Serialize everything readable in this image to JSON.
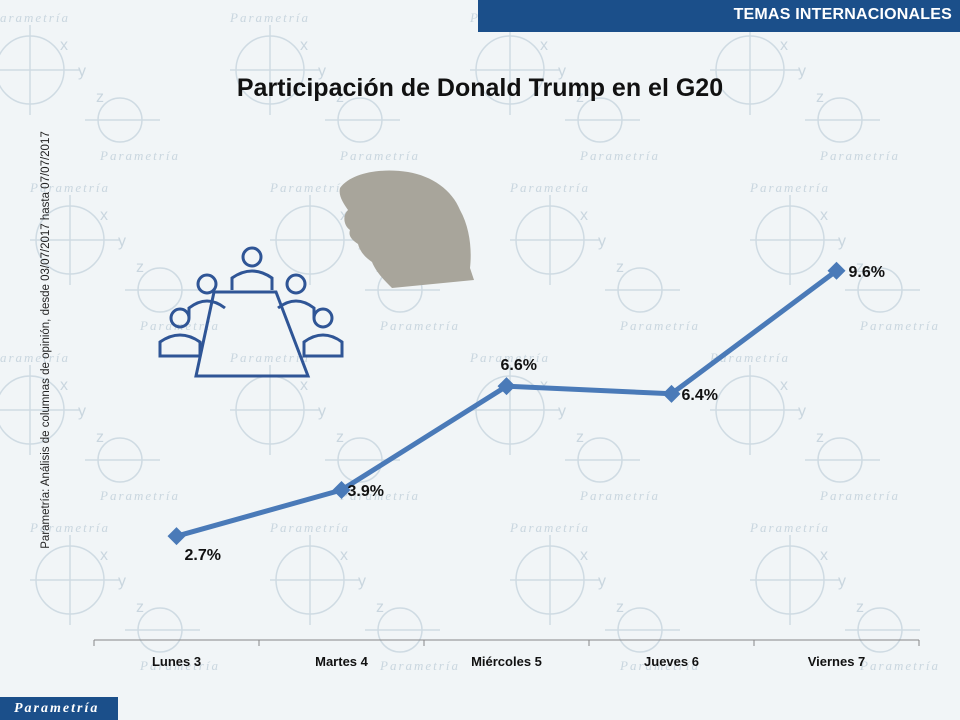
{
  "header": {
    "section": "TEMAS INTERNACIONALES"
  },
  "source_note": "Parametría: Análisis de columnas de opinión, desde 03/07/2017 hasta 07/07/2017",
  "footer": {
    "brand": "Parametría"
  },
  "background": {
    "watermark_word": "Parametría",
    "axis_letters": [
      "x",
      "y",
      "z"
    ]
  },
  "illustrations": [
    "trump-silhouette",
    "meeting-table-icon"
  ],
  "colors": {
    "line": "#4a7ab8",
    "banner": "#1b4f8a",
    "silhouette": "#a8a59b",
    "icon": "#2f5596"
  },
  "chart_data": {
    "type": "line",
    "title": "Participación de Donald Trump en el G20",
    "categories": [
      "Lunes 3",
      "Martes 4",
      "Miércoles 5",
      "Jueves 6",
      "Viernes 7"
    ],
    "values": [
      2.7,
      3.9,
      6.6,
      6.4,
      9.6
    ],
    "data_labels": [
      "2.7%",
      "3.9%",
      "6.6%",
      "6.4%",
      "9.6%"
    ],
    "marker": "diamond",
    "ylim": [
      0,
      13
    ],
    "grid": false,
    "legend": "none"
  }
}
